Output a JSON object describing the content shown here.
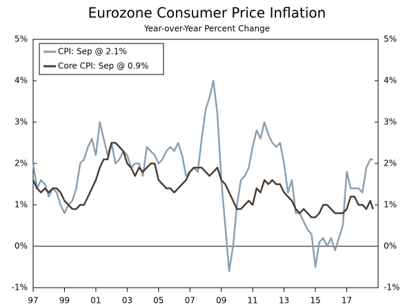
{
  "chart_data": {
    "type": "line",
    "title": "Eurozone Consumer Price Inflation",
    "subtitle": "Year-over-Year Percent Change",
    "x": [
      1997,
      1997.25,
      1997.5,
      1997.75,
      1998,
      1998.25,
      1998.5,
      1998.75,
      1999,
      1999.25,
      1999.5,
      1999.75,
      2000,
      2000.25,
      2000.5,
      2000.75,
      2001,
      2001.25,
      2001.5,
      2001.75,
      2002,
      2002.25,
      2002.5,
      2002.75,
      2003,
      2003.25,
      2003.5,
      2003.75,
      2004,
      2004.25,
      2004.5,
      2004.75,
      2005,
      2005.25,
      2005.5,
      2005.75,
      2006,
      2006.25,
      2006.5,
      2006.75,
      2007,
      2007.25,
      2007.5,
      2007.75,
      2008,
      2008.25,
      2008.5,
      2008.75,
      2009,
      2009.25,
      2009.5,
      2009.75,
      2010,
      2010.25,
      2010.5,
      2010.75,
      2011,
      2011.25,
      2011.5,
      2011.75,
      2012,
      2012.25,
      2012.5,
      2012.75,
      2013,
      2013.25,
      2013.5,
      2013.75,
      2014,
      2014.25,
      2014.5,
      2014.75,
      2015,
      2015.25,
      2015.5,
      2015.75,
      2016,
      2016.25,
      2016.5,
      2016.75,
      2017,
      2017.25,
      2017.5,
      2017.75,
      2018,
      2018.25,
      2018.5,
      2018.67
    ],
    "series": [
      {
        "name": "CPI: Sep @ 2.1%",
        "color": "#87a0b5",
        "values": [
          2.0,
          1.4,
          1.6,
          1.5,
          1.2,
          1.4,
          1.3,
          1.0,
          0.8,
          1.0,
          1.1,
          1.4,
          2.0,
          2.1,
          2.4,
          2.6,
          2.2,
          3.0,
          2.6,
          2.2,
          2.5,
          2.0,
          2.1,
          2.3,
          2.2,
          1.9,
          2.0,
          2.0,
          1.7,
          2.4,
          2.3,
          2.2,
          2.0,
          2.1,
          2.3,
          2.4,
          2.3,
          2.5,
          2.2,
          1.7,
          1.8,
          1.9,
          1.8,
          2.6,
          3.3,
          3.6,
          4.0,
          3.2,
          1.6,
          0.5,
          -0.6,
          0.0,
          1.0,
          1.6,
          1.7,
          1.9,
          2.4,
          2.8,
          2.6,
          3.0,
          2.7,
          2.5,
          2.4,
          2.5,
          2.0,
          1.3,
          1.6,
          0.8,
          0.8,
          0.6,
          0.4,
          0.3,
          -0.5,
          0.1,
          0.2,
          0.0,
          0.2,
          -0.1,
          0.2,
          0.5,
          1.8,
          1.4,
          1.4,
          1.4,
          1.3,
          1.9,
          2.1,
          2.1
        ]
      },
      {
        "name": "Core CPI: Sep @ 0.9%",
        "color": "#4b3b30",
        "values": [
          1.6,
          1.4,
          1.3,
          1.4,
          1.3,
          1.4,
          1.4,
          1.3,
          1.1,
          1.0,
          0.9,
          0.9,
          1.0,
          1.0,
          1.2,
          1.4,
          1.6,
          1.9,
          2.1,
          2.1,
          2.5,
          2.5,
          2.4,
          2.3,
          2.0,
          1.9,
          1.7,
          1.9,
          1.8,
          1.9,
          2.0,
          2.0,
          1.6,
          1.5,
          1.4,
          1.4,
          1.3,
          1.4,
          1.5,
          1.6,
          1.8,
          1.9,
          1.9,
          1.9,
          1.8,
          1.7,
          1.8,
          1.9,
          1.6,
          1.5,
          1.3,
          1.1,
          0.9,
          0.9,
          1.0,
          1.1,
          1.0,
          1.4,
          1.3,
          1.6,
          1.5,
          1.6,
          1.5,
          1.5,
          1.3,
          1.2,
          1.1,
          0.9,
          0.8,
          0.9,
          0.8,
          0.7,
          0.7,
          0.8,
          1.0,
          1.0,
          0.9,
          0.8,
          0.8,
          0.8,
          0.9,
          1.2,
          1.2,
          1.0,
          1.0,
          0.9,
          1.1,
          0.9
        ]
      }
    ],
    "xlim": [
      1997,
      2019
    ],
    "xticks": [
      {
        "value": 1997,
        "label": "97"
      },
      {
        "value": 1999,
        "label": "99"
      },
      {
        "value": 2001,
        "label": "01"
      },
      {
        "value": 2003,
        "label": "03"
      },
      {
        "value": 2005,
        "label": "05"
      },
      {
        "value": 2007,
        "label": "07"
      },
      {
        "value": 2009,
        "label": "09"
      },
      {
        "value": 2011,
        "label": "11"
      },
      {
        "value": 2013,
        "label": "13"
      },
      {
        "value": 2015,
        "label": "15"
      },
      {
        "value": 2017,
        "label": "17"
      }
    ],
    "ylim": [
      -1,
      5
    ],
    "yticks": [
      {
        "value": -1,
        "label": "-1%"
      },
      {
        "value": 0,
        "label": "0%"
      },
      {
        "value": 1,
        "label": "1%"
      },
      {
        "value": 2,
        "label": "2%"
      },
      {
        "value": 3,
        "label": "3%"
      },
      {
        "value": 4,
        "label": "4%"
      },
      {
        "value": 5,
        "label": "5%"
      }
    ],
    "y2lim": [
      -1,
      5
    ],
    "y2ticks": [
      {
        "value": -1,
        "label": "-1%"
      },
      {
        "value": 0,
        "label": "0%"
      },
      {
        "value": 1,
        "label": "1%"
      },
      {
        "value": 2,
        "label": "2%"
      },
      {
        "value": 3,
        "label": "3%"
      },
      {
        "value": 4,
        "label": "4%"
      },
      {
        "value": 5,
        "label": "5%"
      }
    ],
    "legend": "upper left",
    "grid": false
  }
}
